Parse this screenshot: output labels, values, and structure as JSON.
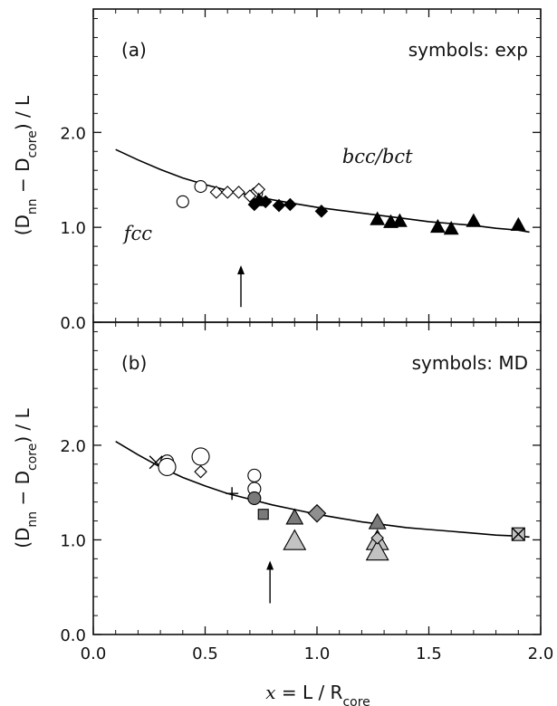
{
  "chart_data": {
    "type": "scatter",
    "xlabel": {
      "var": "x",
      "eq": " = L / R",
      "sub": "core"
    },
    "xlim": [
      0.0,
      2.0
    ],
    "xticks": [
      0.0,
      0.5,
      1.0,
      1.5,
      2.0
    ],
    "xtick_labels": [
      "0.0",
      "0.5",
      "1.0",
      "1.5",
      "2.0"
    ],
    "colors": {
      "axis": "#111111",
      "black": "#000000",
      "dark_gray": "#7a7a7a",
      "mid_gray": "#8f8f8f",
      "light_gray": "#c2c2c2",
      "white": "#ffffff"
    },
    "panels": [
      {
        "id": "a",
        "panel_label": "(a)",
        "corner_text": "symbols: exp",
        "ylabel": {
          "pre": "(D",
          "s1": "nn",
          "mid": " − D",
          "s2": "core",
          "post": ") / L"
        },
        "ylim": [
          0.0,
          3.3
        ],
        "yticks": [
          0.0,
          1.0,
          2.0
        ],
        "ytick_labels": [
          "0.0",
          "1.0",
          "2.0"
        ],
        "phase_labels": [
          {
            "text": "fcc",
            "x": 0.2,
            "y": 0.87
          },
          {
            "text": "bcc/bct",
            "x": 1.27,
            "y": 1.68
          }
        ],
        "curve": {
          "x": [
            0.1,
            0.2,
            0.3,
            0.4,
            0.5,
            0.6,
            0.7,
            0.8,
            0.9,
            1.0,
            1.1,
            1.2,
            1.3,
            1.4,
            1.5,
            1.6,
            1.7,
            1.8,
            1.9,
            1.95
          ],
          "y": [
            1.82,
            1.71,
            1.61,
            1.52,
            1.45,
            1.39,
            1.34,
            1.29,
            1.25,
            1.21,
            1.18,
            1.15,
            1.12,
            1.09,
            1.06,
            1.04,
            1.02,
            0.99,
            0.97,
            0.95
          ]
        },
        "arrow": {
          "x": 0.66,
          "y_start": 0.16,
          "y_end": 0.6
        },
        "series": [
          {
            "marker": "circle",
            "fill": "#ffffff",
            "size": 13,
            "points": [
              [
                0.4,
                1.27
              ],
              [
                0.48,
                1.43
              ],
              [
                0.73,
                1.36
              ]
            ]
          },
          {
            "marker": "diamond",
            "fill": "#ffffff",
            "size": 13,
            "points": [
              [
                0.55,
                1.37
              ],
              [
                0.6,
                1.37
              ],
              [
                0.65,
                1.37
              ],
              [
                0.7,
                1.33
              ],
              [
                0.74,
                1.4
              ]
            ]
          },
          {
            "marker": "diamond",
            "fill": "#000000",
            "size": 13,
            "points": [
              [
                0.72,
                1.24
              ],
              [
                0.77,
                1.27
              ],
              [
                0.83,
                1.23
              ],
              [
                0.88,
                1.24
              ],
              [
                1.02,
                1.17
              ]
            ]
          },
          {
            "marker": "triangle",
            "fill": "#000000",
            "size": 15,
            "points": [
              [
                0.74,
                1.28
              ],
              [
                1.27,
                1.08
              ],
              [
                1.33,
                1.05
              ],
              [
                1.37,
                1.06
              ],
              [
                1.54,
                1.0
              ],
              [
                1.6,
                0.98
              ],
              [
                1.7,
                1.06
              ],
              [
                1.9,
                1.02
              ]
            ]
          }
        ]
      },
      {
        "id": "b",
        "panel_label": "(b)",
        "corner_text": "symbols: MD",
        "ylabel": {
          "pre": "(D",
          "s1": "nn",
          "mid": " − D",
          "s2": "core",
          "post": ") / L"
        },
        "ylim": [
          0.0,
          3.3
        ],
        "yticks": [
          0.0,
          1.0,
          2.0
        ],
        "ytick_labels": [
          "0.0",
          "1.0",
          "2.0"
        ],
        "phase_labels": [],
        "curve": {
          "x": [
            0.1,
            0.2,
            0.3,
            0.4,
            0.5,
            0.6,
            0.7,
            0.8,
            0.9,
            1.0,
            1.1,
            1.2,
            1.3,
            1.4,
            1.5,
            1.6,
            1.7,
            1.8,
            1.9,
            1.95
          ],
          "y": [
            2.04,
            1.9,
            1.77,
            1.66,
            1.57,
            1.49,
            1.43,
            1.37,
            1.32,
            1.27,
            1.23,
            1.19,
            1.16,
            1.13,
            1.11,
            1.09,
            1.07,
            1.05,
            1.04,
            1.03
          ]
        },
        "arrow": {
          "x": 0.79,
          "y_start": 0.33,
          "y_end": 0.78
        },
        "series": [
          {
            "marker": "x",
            "fill": "#000000",
            "size": 14,
            "points": [
              [
                0.28,
                1.82
              ]
            ]
          },
          {
            "marker": "circle",
            "fill": "#ffffff",
            "size": 14,
            "points": [
              [
                0.33,
                1.83
              ],
              [
                0.72,
                1.68
              ],
              [
                0.72,
                1.54
              ]
            ]
          },
          {
            "marker": "circle",
            "fill": "#ffffff",
            "size": 19,
            "points": [
              [
                0.33,
                1.77
              ],
              [
                0.48,
                1.88
              ]
            ]
          },
          {
            "marker": "diamond",
            "fill": "#ffffff",
            "size": 13,
            "points": [
              [
                0.48,
                1.72
              ]
            ]
          },
          {
            "marker": "plus",
            "fill": "#000000",
            "size": 14,
            "points": [
              [
                0.62,
                1.49
              ]
            ]
          },
          {
            "marker": "circle",
            "fill": "#7a7a7a",
            "size": 14,
            "points": [
              [
                0.72,
                1.44
              ]
            ]
          },
          {
            "marker": "square",
            "fill": "#7a7a7a",
            "size": 11,
            "points": [
              [
                0.76,
                1.27
              ]
            ]
          },
          {
            "marker": "triangle",
            "fill": "#7a7a7a",
            "size": 18,
            "points": [
              [
                0.9,
                1.23
              ],
              [
                1.27,
                1.18
              ]
            ]
          },
          {
            "marker": "triangle",
            "fill": "#c2c2c2",
            "size": 24,
            "points": [
              [
                0.9,
                0.98
              ],
              [
                1.27,
                0.98
              ],
              [
                1.27,
                0.87
              ]
            ]
          },
          {
            "marker": "diamond",
            "fill": "#8f8f8f",
            "size": 19,
            "points": [
              [
                1.0,
                1.28
              ]
            ]
          },
          {
            "marker": "diamond",
            "fill": "#c2c2c2",
            "size": 13,
            "points": [
              [
                1.27,
                1.02
              ]
            ]
          },
          {
            "marker": "square",
            "fill": "#c2c2c2",
            "size": 14,
            "points": [
              [
                1.9,
                1.06
              ]
            ]
          },
          {
            "marker": "x",
            "fill": "#000000",
            "size": 13,
            "points": [
              [
                1.9,
                1.06
              ]
            ]
          }
        ]
      }
    ]
  }
}
